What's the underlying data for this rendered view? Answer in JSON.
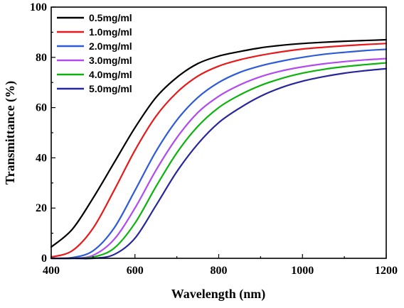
{
  "chart_data": {
    "type": "line",
    "title": "",
    "xlabel": "Wavelength (nm)",
    "ylabel": "Transmittance (%)",
    "xlim": [
      400,
      1200
    ],
    "ylim": [
      0,
      100
    ],
    "x_ticks": [
      400,
      600,
      800,
      1000,
      1200
    ],
    "y_ticks": [
      0,
      20,
      40,
      60,
      80,
      100
    ],
    "grid": false,
    "legend_position": "top-left",
    "x": [
      400,
      450,
      500,
      550,
      600,
      650,
      700,
      750,
      800,
      850,
      900,
      950,
      1000,
      1050,
      1100,
      1150,
      1200
    ],
    "series": [
      {
        "name": "0.5mg/ml",
        "color": "#000000",
        "values": [
          4.5,
          11.5,
          24,
          38,
          52,
          64,
          72,
          77.5,
          80.5,
          82.3,
          83.8,
          84.8,
          85.5,
          86,
          86.4,
          86.7,
          87
        ]
      },
      {
        "name": "1.0mg/ml",
        "color": "#e8191a",
        "values": [
          0.5,
          3,
          12,
          27,
          43,
          56.5,
          66,
          72.5,
          76.5,
          79,
          80.8,
          82.2,
          83.3,
          84,
          84.6,
          85.1,
          85.5
        ]
      },
      {
        "name": "2.0mg/ml",
        "color": "#2e5bd8",
        "values": [
          0,
          0.3,
          3,
          12,
          27,
          42.5,
          55,
          64,
          70,
          74,
          76.6,
          78.5,
          80,
          81.2,
          82,
          82.7,
          83.2
        ]
      },
      {
        "name": "3.0mg/ml",
        "color": "#b14bf0",
        "values": [
          0,
          0,
          1.2,
          7.5,
          20,
          35,
          48,
          58,
          64.5,
          69,
          72.3,
          74.6,
          76.2,
          77.4,
          78.3,
          79,
          79.5
        ]
      },
      {
        "name": "4.0mg/ml",
        "color": "#0cb30c",
        "values": [
          0,
          0,
          0.5,
          4,
          14,
          28.5,
          42,
          52.5,
          60,
          65,
          68.8,
          71.6,
          73.7,
          75.2,
          76.3,
          77.1,
          77.8
        ]
      },
      {
        "name": "5.0mg/ml",
        "color": "#27279b",
        "values": [
          0,
          0,
          0,
          1.5,
          8,
          21,
          34.5,
          45.5,
          54,
          59.8,
          64.5,
          68,
          70.5,
          72.3,
          73.7,
          74.7,
          75.5
        ]
      }
    ]
  }
}
